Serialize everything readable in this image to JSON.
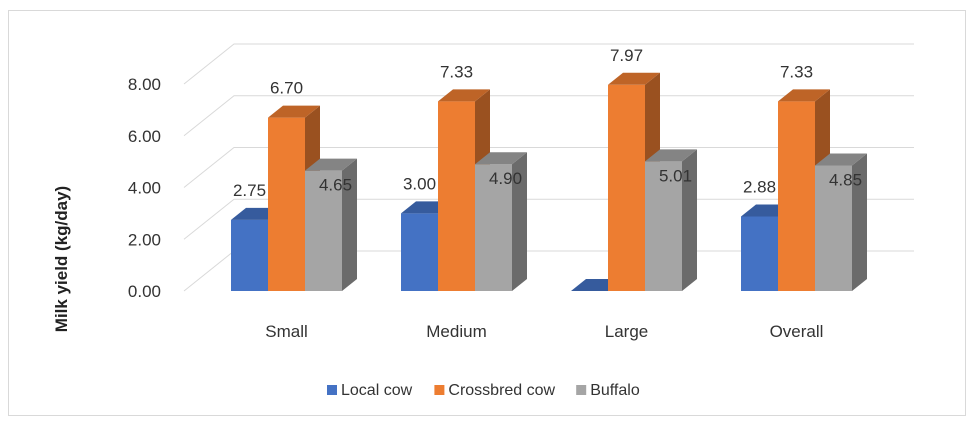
{
  "chart_data": {
    "type": "bar",
    "title": "",
    "xlabel": "",
    "ylabel": "Milk yield (kg/day)",
    "ylim": [
      0,
      8
    ],
    "yticks": [
      "0.00",
      "2.00",
      "4.00",
      "6.00",
      "8.00"
    ],
    "categories": [
      "Small",
      "Medium",
      "Large",
      "Overall"
    ],
    "series": [
      {
        "name": "Local cow",
        "color": "#4472C4",
        "values": [
          2.75,
          3.0,
          0,
          2.88
        ],
        "labels": [
          "2.75",
          "3.00",
          "",
          "2.88"
        ]
      },
      {
        "name": "Crossbred cow",
        "color": "#ED7D31",
        "values": [
          6.7,
          7.33,
          7.97,
          7.33
        ],
        "labels": [
          "6.70",
          "7.33",
          "7.97",
          "7.33"
        ]
      },
      {
        "name": "Buffalo",
        "color": "#A5A5A5",
        "values": [
          4.65,
          4.9,
          5.01,
          4.85
        ],
        "labels": [
          "4.65",
          "4.90",
          "5.01",
          "4.85"
        ]
      }
    ],
    "legend_position": "bottom",
    "grid": true,
    "style": "3d-clustered-column"
  }
}
